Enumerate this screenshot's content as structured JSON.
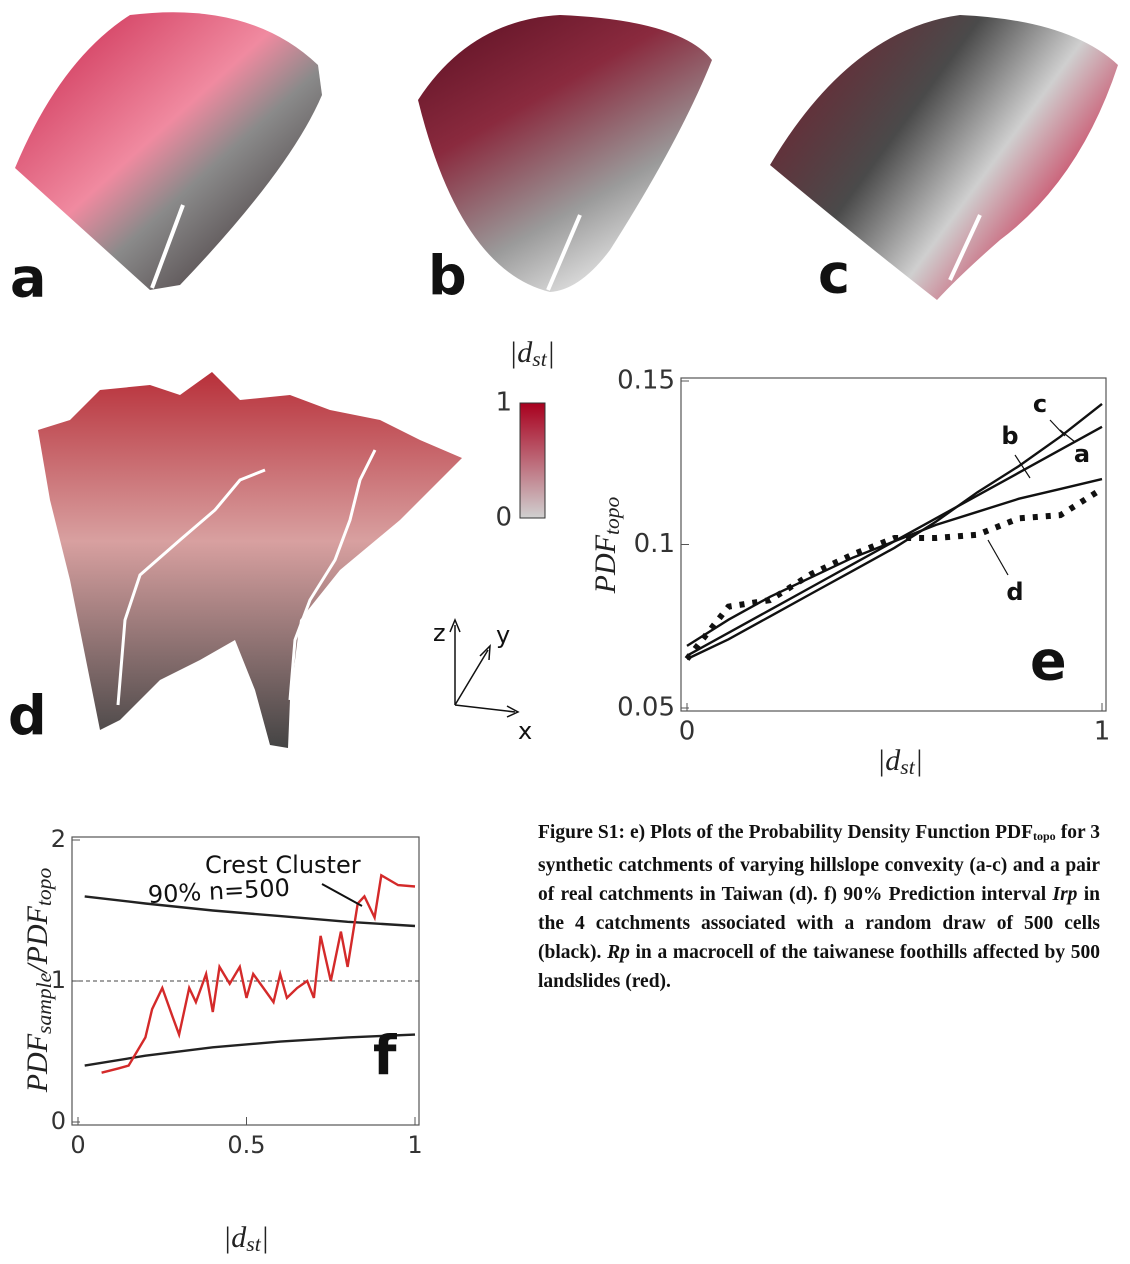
{
  "panels": [
    {
      "label": "a"
    },
    {
      "label": "b"
    },
    {
      "label": "c"
    },
    {
      "label": "d"
    }
  ],
  "colorbar": {
    "title": [
      {
        "text": "|d"
      },
      {
        "text": "st",
        "sub": true
      },
      {
        "text": "|"
      }
    ],
    "ticks": [
      0,
      1
    ]
  },
  "triad": {
    "z": "z",
    "y": "y",
    "x": "x"
  },
  "chart_data": [
    {
      "type": "line",
      "panel": "e",
      "xlabel": [
        {
          "text": "|d"
        },
        {
          "text": "st",
          "sub": true
        },
        {
          "text": "|"
        }
      ],
      "ylabel": [
        {
          "text": "PDF"
        },
        {
          "text": "topo",
          "sub": true
        }
      ],
      "x": [
        0,
        0.1,
        0.2,
        0.3,
        0.4,
        0.5,
        0.6,
        0.7,
        0.8,
        0.9,
        1
      ],
      "series": [
        {
          "name": "a",
          "color": "#111111",
          "values": [
            0.066,
            0.073,
            0.08,
            0.087,
            0.094,
            0.101,
            0.108,
            0.115,
            0.122,
            0.129,
            0.136
          ]
        },
        {
          "name": "b",
          "color": "#111111",
          "values": [
            0.069,
            0.077,
            0.084,
            0.09,
            0.096,
            0.101,
            0.106,
            0.11,
            0.114,
            0.117,
            0.12
          ]
        },
        {
          "name": "c",
          "color": "#111111",
          "values": [
            0.065,
            0.071,
            0.078,
            0.085,
            0.092,
            0.099,
            0.107,
            0.116,
            0.124,
            0.133,
            0.143
          ]
        },
        {
          "name": "d",
          "color": "#111111",
          "dotted": true,
          "values": [
            0.065,
            0.081,
            0.083,
            0.091,
            0.097,
            0.102,
            0.102,
            0.103,
            0.108,
            0.109,
            0.117
          ]
        }
      ],
      "xlim": [
        0,
        1
      ],
      "ylim": [
        0.05,
        0.15
      ],
      "xticks": [
        0,
        1
      ],
      "yticks": [
        0.05,
        0.1,
        0.15
      ]
    },
    {
      "type": "line",
      "panel": "f",
      "xlabel": [
        {
          "text": "|d"
        },
        {
          "text": "st",
          "sub": true
        },
        {
          "text": "|"
        }
      ],
      "ylabel": [
        {
          "text": "PDF"
        },
        {
          "text": "sample",
          "sub": true
        },
        {
          "text": "/PDF"
        },
        {
          "text": "topo",
          "sub": true
        }
      ],
      "annotations": [
        "Crest Cluster",
        "90% n=500"
      ],
      "hline": 1,
      "series": [
        {
          "color": "#222222",
          "x": [
            0.02,
            0.2,
            0.4,
            0.6,
            0.8,
            1
          ],
          "values": [
            1.6,
            1.55,
            1.5,
            1.46,
            1.42,
            1.39
          ]
        },
        {
          "color": "#222222",
          "x": [
            0.02,
            0.2,
            0.4,
            0.6,
            0.8,
            1
          ],
          "values": [
            0.4,
            0.47,
            0.53,
            0.57,
            0.6,
            0.62
          ]
        },
        {
          "color": "#d42a2a",
          "x": [
            0.07,
            0.12,
            0.15,
            0.2,
            0.22,
            0.25,
            0.28,
            0.3,
            0.33,
            0.35,
            0.38,
            0.4,
            0.42,
            0.45,
            0.48,
            0.5,
            0.52,
            0.55,
            0.58,
            0.6,
            0.62,
            0.65,
            0.68,
            0.7,
            0.72,
            0.75,
            0.78,
            0.8,
            0.83,
            0.85,
            0.88,
            0.9,
            0.95,
            1.0
          ],
          "values": [
            0.35,
            0.38,
            0.4,
            0.6,
            0.8,
            0.95,
            0.75,
            0.62,
            0.95,
            0.85,
            1.05,
            0.78,
            1.1,
            0.98,
            1.1,
            0.88,
            1.05,
            0.95,
            0.85,
            1.05,
            0.88,
            0.95,
            1.0,
            0.88,
            1.32,
            1.0,
            1.35,
            1.1,
            1.55,
            1.6,
            1.45,
            1.75,
            1.68,
            1.67
          ]
        }
      ],
      "xlim": [
        0,
        1
      ],
      "ylim": [
        0,
        2
      ],
      "xticks": [
        0,
        0.5,
        1
      ],
      "yticks": [
        0,
        1,
        2
      ]
    }
  ],
  "caption": [
    {
      "text": "Figure S1: e) Plots of the Probability Density Function PDF"
    },
    {
      "text": "topo",
      "sub": true
    },
    {
      "text": " for 3 synthetic catchments of varying hillslope convexity (a-c) and a pair of real catchments in Taiwan (d). f) 90% Prediction interval "
    },
    {
      "text": "Irp",
      "italic": true
    },
    {
      "text": " in the 4 catchments associated with a random draw of 500 cells (black). "
    },
    {
      "text": "Rp",
      "italic": true
    },
    {
      "text": " in a macrocell of the taiwanese foothills affected by 500 landslides (red)."
    }
  ]
}
